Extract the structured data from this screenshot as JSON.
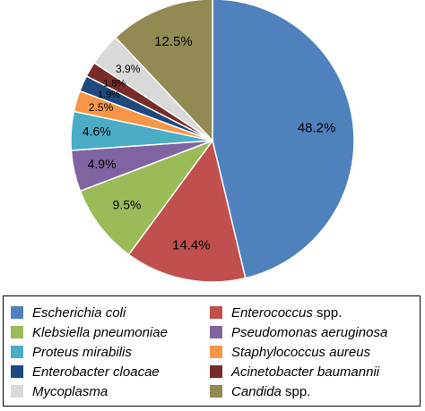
{
  "chart_data": {
    "type": "pie",
    "title": "",
    "slices": [
      {
        "name_italic": "Escherichia coli",
        "name_suffix": "",
        "value": 48.2,
        "label": "48.2%",
        "color": "#4F81BD"
      },
      {
        "name_italic": "Enterococcus",
        "name_suffix": " spp.",
        "value": 14.4,
        "label": "14.4%",
        "color": "#C0504D"
      },
      {
        "name_italic": "Klebsiella pneumoniae",
        "name_suffix": "",
        "value": 9.5,
        "label": "9.5%",
        "color": "#9BBB59"
      },
      {
        "name_italic": "Pseudomonas aeruginosa",
        "name_suffix": "",
        "value": 4.9,
        "label": "4.9%",
        "color": "#8064A2"
      },
      {
        "name_italic": "Proteus mirabilis",
        "name_suffix": "",
        "value": 4.6,
        "label": "4.6%",
        "color": "#4BACC6"
      },
      {
        "name_italic": "Staphylococcus aureus",
        "name_suffix": "",
        "value": 2.5,
        "label": "2.5%",
        "color": "#F79646"
      },
      {
        "name_italic": "Enterobacter cloacae",
        "name_suffix": "",
        "value": 1.9,
        "label": "1.9%",
        "color": "#1F497D"
      },
      {
        "name_italic": "Acinetobacter baumannii",
        "name_suffix": "",
        "value": 1.8,
        "label": "1.8%",
        "color": "#772C2A"
      },
      {
        "name_italic": "Mycoplasma",
        "name_suffix": "",
        "value": 3.9,
        "label": "3.9%",
        "color": "#D9D9D9"
      },
      {
        "name_italic": "Candida",
        "name_suffix": " spp.",
        "value": 12.5,
        "label": "12.5%",
        "color": "#938953"
      }
    ],
    "start_angle_deg": 0,
    "direction": "clockwise",
    "legend_position": "bottom"
  }
}
